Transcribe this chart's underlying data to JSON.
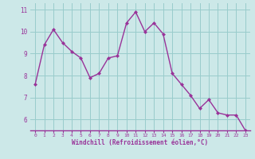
{
  "x": [
    0,
    1,
    2,
    3,
    4,
    5,
    6,
    7,
    8,
    9,
    10,
    11,
    12,
    13,
    14,
    15,
    16,
    17,
    18,
    19,
    20,
    21,
    22,
    23
  ],
  "y": [
    7.6,
    9.4,
    10.1,
    9.5,
    9.1,
    8.8,
    7.9,
    8.1,
    8.8,
    8.9,
    10.4,
    10.9,
    10.0,
    10.4,
    9.9,
    8.1,
    7.6,
    7.1,
    6.5,
    6.9,
    6.3,
    6.2,
    6.2,
    5.5
  ],
  "xlabel": "Windchill (Refroidissement éolien,°C)",
  "bg_color": "#cce8e8",
  "line_color": "#993399",
  "marker_color": "#993399",
  "grid_color": "#99cccc",
  "tick_color": "#993399",
  "xlabel_color": "#993399",
  "xlim": [
    -0.5,
    23.5
  ],
  "ylim": [
    5.5,
    11.3
  ],
  "yticks": [
    6,
    7,
    8,
    9,
    10,
    11
  ],
  "xticks": [
    0,
    1,
    2,
    3,
    4,
    5,
    6,
    7,
    8,
    9,
    10,
    11,
    12,
    13,
    14,
    15,
    16,
    17,
    18,
    19,
    20,
    21,
    22,
    23
  ]
}
